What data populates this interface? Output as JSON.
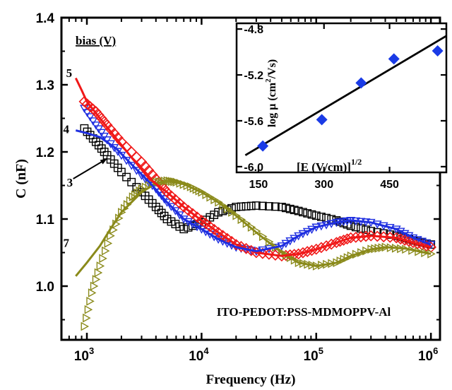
{
  "chart_data": [
    {
      "type": "line",
      "title": "",
      "xlabel": "Frequency (Hz)",
      "ylabel": "C (nF)",
      "xscale": "log",
      "xlim": [
        600,
        1200000
      ],
      "ylim": [
        0.92,
        1.4
      ],
      "x_ticks": [
        {
          "value": 1000,
          "base": "10",
          "exp": "3"
        },
        {
          "value": 10000,
          "base": "10",
          "exp": "4"
        },
        {
          "value": 100000,
          "base": "10",
          "exp": "5"
        },
        {
          "value": 1000000,
          "base": "10",
          "exp": "6"
        }
      ],
      "y_ticks": [
        {
          "value": 1.0,
          "label": "1.0"
        },
        {
          "value": 1.1,
          "label": "1.1"
        },
        {
          "value": 1.2,
          "label": "1.2"
        },
        {
          "value": 1.3,
          "label": "1.3"
        },
        {
          "value": 1.4,
          "label": "1.4"
        }
      ],
      "legend_title": "bias (V)",
      "annotation": "ITO-PEDOT:PSS-MDMOPPV-Al",
      "series": [
        {
          "name": "3",
          "color": "#000000",
          "marker": "square",
          "x": [
            950,
            1200,
            1500,
            2000,
            3000,
            4000,
            5000,
            7000,
            10000,
            14000,
            20000,
            30000,
            50000,
            70000,
            100000,
            150000,
            200000,
            300000,
            500000,
            700000,
            1000000
          ],
          "y": [
            1.235,
            1.215,
            1.195,
            1.17,
            1.14,
            1.118,
            1.1,
            1.085,
            1.095,
            1.11,
            1.118,
            1.12,
            1.118,
            1.112,
            1.105,
            1.098,
            1.09,
            1.082,
            1.075,
            1.068,
            1.062
          ]
        },
        {
          "name": "4",
          "color": "#1f2fe0",
          "marker": "triangle-down",
          "x": [
            950,
            1200,
            1500,
            2000,
            3000,
            4000,
            5000,
            7000,
            10000,
            14000,
            20000,
            30000,
            50000,
            70000,
            100000,
            150000,
            200000,
            300000,
            500000,
            700000,
            1000000
          ],
          "y": [
            1.265,
            1.24,
            1.218,
            1.195,
            1.165,
            1.145,
            1.125,
            1.1,
            1.085,
            1.07,
            1.058,
            1.052,
            1.06,
            1.075,
            1.088,
            1.095,
            1.098,
            1.095,
            1.085,
            1.072,
            1.062
          ]
        },
        {
          "name": "5",
          "color": "#f01818",
          "marker": "diamond",
          "x": [
            950,
            1200,
            1500,
            2000,
            3000,
            4000,
            5000,
            7000,
            10000,
            14000,
            20000,
            30000,
            50000,
            70000,
            100000,
            150000,
            200000,
            300000,
            500000,
            700000,
            1000000
          ],
          "y": [
            1.275,
            1.26,
            1.24,
            1.215,
            1.185,
            1.16,
            1.14,
            1.118,
            1.098,
            1.08,
            1.062,
            1.05,
            1.045,
            1.048,
            1.055,
            1.065,
            1.072,
            1.075,
            1.072,
            1.065,
            1.058
          ]
        },
        {
          "name": "7",
          "color": "#8a8a1a",
          "marker": "triangle-right",
          "x": [
            950,
            1100,
            1300,
            1600,
            2000,
            2500,
            3000,
            4000,
            5000,
            6000,
            8000,
            10000,
            14000,
            20000,
            30000,
            50000,
            70000,
            100000,
            150000,
            200000,
            300000,
            400000,
            600000,
            1000000
          ],
          "y": [
            0.94,
            0.99,
            1.03,
            1.075,
            1.11,
            1.133,
            1.145,
            1.155,
            1.157,
            1.155,
            1.148,
            1.14,
            1.125,
            1.105,
            1.082,
            1.05,
            1.035,
            1.03,
            1.035,
            1.045,
            1.055,
            1.058,
            1.055,
            1.048
          ]
        }
      ],
      "fit_lines": [
        {
          "name": "7",
          "color": "#8a8a1a",
          "x": [
            800,
            1000,
            1300,
            1600,
            2000,
            3000,
            4000,
            5000,
            7000,
            10000,
            14000,
            20000,
            30000,
            50000,
            70000,
            100000,
            150000,
            200000,
            300000,
            400000,
            600000,
            1000000
          ],
          "y": [
            1.015,
            1.035,
            1.06,
            1.085,
            1.11,
            1.14,
            1.153,
            1.157,
            1.152,
            1.14,
            1.125,
            1.105,
            1.08,
            1.05,
            1.035,
            1.03,
            1.035,
            1.045,
            1.055,
            1.058,
            1.056,
            1.048
          ]
        },
        {
          "name": "5",
          "color": "#f01818",
          "x": [
            800,
            900,
            1000,
            1300,
            1800,
            2500,
            3500,
            5000,
            7000,
            10000,
            14000,
            20000,
            30000,
            50000,
            70000,
            100000,
            150000,
            200000,
            300000,
            500000,
            700000,
            1000000
          ],
          "y": [
            1.31,
            1.292,
            1.275,
            1.25,
            1.22,
            1.19,
            1.16,
            1.14,
            1.118,
            1.098,
            1.08,
            1.062,
            1.05,
            1.045,
            1.048,
            1.055,
            1.065,
            1.072,
            1.075,
            1.072,
            1.065,
            1.058
          ]
        },
        {
          "name": "4",
          "color": "#1f2fe0",
          "x": [
            800,
            1000,
            1300,
            1800,
            2500,
            3500,
            5000,
            7000,
            10000,
            14000,
            20000,
            30000,
            50000,
            70000,
            100000,
            150000,
            200000,
            300000,
            500000,
            700000,
            1000000
          ],
          "y": [
            1.232,
            1.228,
            1.222,
            1.205,
            1.18,
            1.155,
            1.125,
            1.1,
            1.085,
            1.07,
            1.058,
            1.052,
            1.06,
            1.075,
            1.088,
            1.095,
            1.098,
            1.095,
            1.085,
            1.072,
            1.062
          ]
        }
      ],
      "curve_labels": [
        {
          "text": "5",
          "x": 700,
          "y": 1.318
        },
        {
          "text": "4",
          "x": 660,
          "y": 1.234
        },
        {
          "text": "3",
          "x": 710,
          "y": 1.155
        },
        {
          "text": "7",
          "x": 660,
          "y": 1.065
        }
      ]
    },
    {
      "type": "scatter",
      "title": "",
      "xlabel_main": "[E (V/cm)]",
      "xlabel_sup": "1/2",
      "ylabel_main": "log μ (cm",
      "ylabel_sup": "2",
      "ylabel_end": "/Vs)",
      "xlim": [
        100,
        580
      ],
      "ylim": [
        -6.05,
        -4.75
      ],
      "x_ticks": [
        150,
        300,
        450
      ],
      "y_ticks": [
        -6.0,
        -5.6,
        -5.2,
        -4.8
      ],
      "y_tick_labels": [
        "-6.0",
        "-5.6",
        "-5.2",
        "-4.8"
      ],
      "color": "#1a3be6",
      "points": [
        {
          "x": 160,
          "y": -5.82
        },
        {
          "x": 295,
          "y": -5.59
        },
        {
          "x": 385,
          "y": -5.27
        },
        {
          "x": 460,
          "y": -5.06
        },
        {
          "x": 560,
          "y": -4.99
        }
      ],
      "fit": {
        "x": [
          120,
          580
        ],
        "y": [
          -5.9,
          -4.86
        ]
      }
    }
  ]
}
